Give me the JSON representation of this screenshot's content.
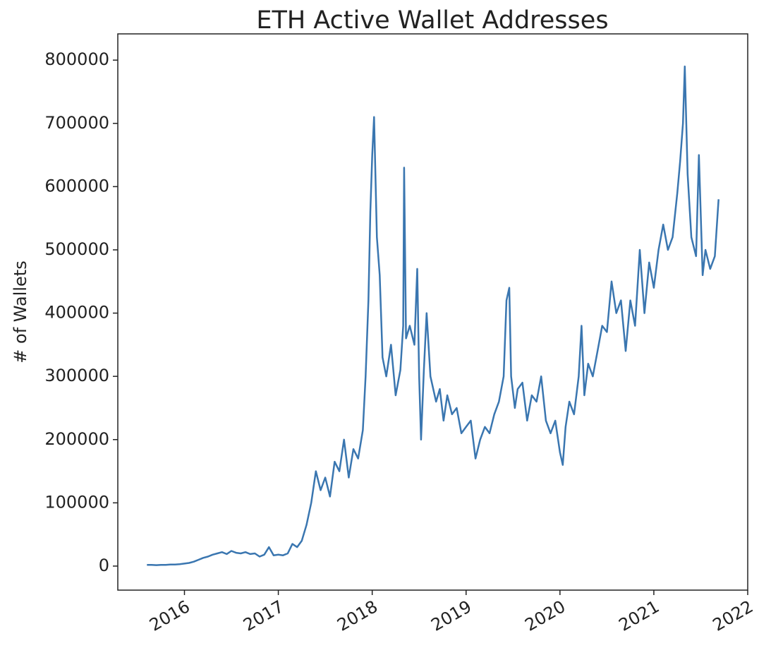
{
  "chart_data": {
    "type": "line",
    "title": "ETH Active Wallet Addresses",
    "y_label": "# of Wallets",
    "xlim": [
      2015.29,
      2022.0
    ],
    "xticks": [
      2016,
      2017,
      2018,
      2019,
      2020,
      2021,
      2022
    ],
    "ylim": [
      -38000,
      841500
    ],
    "yticks": [
      0,
      100000,
      200000,
      300000,
      400000,
      500000,
      600000,
      700000,
      800000
    ],
    "x": [
      2015.6,
      2015.65,
      2015.7,
      2015.75,
      2015.8,
      2015.85,
      2015.9,
      2015.95,
      2016.0,
      2016.05,
      2016.1,
      2016.15,
      2016.2,
      2016.25,
      2016.3,
      2016.35,
      2016.4,
      2016.45,
      2016.5,
      2016.55,
      2016.6,
      2016.65,
      2016.7,
      2016.75,
      2016.8,
      2016.85,
      2016.9,
      2016.95,
      2017.0,
      2017.05,
      2017.1,
      2017.15,
      2017.2,
      2017.25,
      2017.3,
      2017.35,
      2017.4,
      2017.45,
      2017.5,
      2017.55,
      2017.6,
      2017.65,
      2017.7,
      2017.75,
      2017.8,
      2017.85,
      2017.9,
      2017.93,
      2017.96,
      2017.98,
      2018.0,
      2018.02,
      2018.05,
      2018.08,
      2018.11,
      2018.15,
      2018.2,
      2018.25,
      2018.3,
      2018.33,
      2018.34,
      2018.36,
      2018.4,
      2018.45,
      2018.48,
      2018.5,
      2018.52,
      2018.55,
      2018.58,
      2018.62,
      2018.68,
      2018.72,
      2018.76,
      2018.8,
      2018.85,
      2018.9,
      2018.95,
      2019.0,
      2019.05,
      2019.1,
      2019.15,
      2019.2,
      2019.25,
      2019.3,
      2019.35,
      2019.4,
      2019.43,
      2019.46,
      2019.48,
      2019.52,
      2019.55,
      2019.6,
      2019.65,
      2019.7,
      2019.75,
      2019.8,
      2019.85,
      2019.9,
      2019.95,
      2020.0,
      2020.03,
      2020.06,
      2020.1,
      2020.15,
      2020.2,
      2020.23,
      2020.26,
      2020.3,
      2020.35,
      2020.4,
      2020.45,
      2020.5,
      2020.55,
      2020.6,
      2020.65,
      2020.7,
      2020.75,
      2020.8,
      2020.85,
      2020.9,
      2020.95,
      2021.0,
      2021.05,
      2021.1,
      2021.15,
      2021.2,
      2021.25,
      2021.28,
      2021.31,
      2021.33,
      2021.36,
      2021.4,
      2021.45,
      2021.48,
      2021.52,
      2021.55,
      2021.6,
      2021.65,
      2021.69
    ],
    "series": [
      {
        "color": "#3a76b0",
        "values": [
          2000,
          2000,
          1500,
          2000,
          2000,
          2500,
          2500,
          3000,
          4000,
          5000,
          7000,
          10000,
          13000,
          15000,
          18000,
          20000,
          22000,
          19000,
          24000,
          21000,
          20000,
          22000,
          19000,
          20000,
          15000,
          18000,
          30000,
          17000,
          18000,
          17000,
          20000,
          35000,
          30000,
          40000,
          65000,
          100000,
          150000,
          120000,
          140000,
          110000,
          165000,
          150000,
          200000,
          140000,
          185000,
          170000,
          215000,
          300000,
          420000,
          560000,
          650000,
          710000,
          520000,
          460000,
          330000,
          300000,
          350000,
          270000,
          310000,
          380000,
          630000,
          360000,
          380000,
          350000,
          470000,
          300000,
          200000,
          310000,
          400000,
          300000,
          260000,
          280000,
          230000,
          270000,
          240000,
          250000,
          210000,
          220000,
          230000,
          170000,
          200000,
          220000,
          210000,
          240000,
          260000,
          300000,
          420000,
          440000,
          300000,
          250000,
          280000,
          290000,
          230000,
          270000,
          260000,
          300000,
          230000,
          210000,
          230000,
          180000,
          160000,
          220000,
          260000,
          240000,
          300000,
          380000,
          270000,
          320000,
          300000,
          340000,
          380000,
          370000,
          450000,
          400000,
          420000,
          340000,
          420000,
          380000,
          500000,
          400000,
          480000,
          440000,
          500000,
          540000,
          500000,
          520000,
          590000,
          640000,
          700000,
          790000,
          620000,
          520000,
          490000,
          650000,
          460000,
          500000,
          470000,
          490000,
          580000
        ]
      }
    ]
  }
}
